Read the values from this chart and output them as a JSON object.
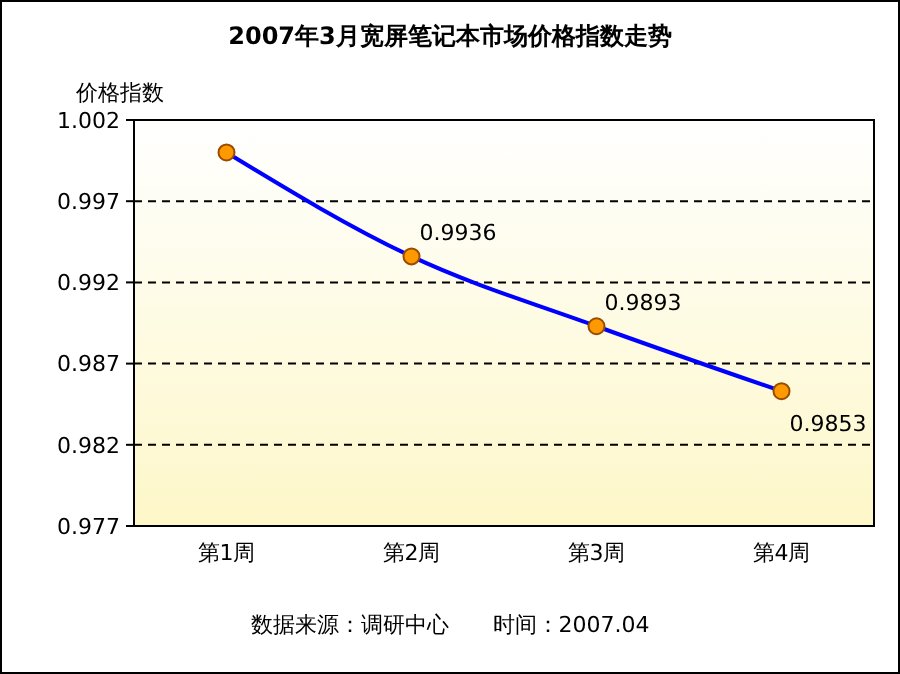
{
  "chart_data": {
    "type": "line",
    "title": "2007年3月宽屏笔记本市场价格指数走势",
    "ylabel": "价格指数",
    "categories": [
      "第1周",
      "第2周",
      "第3周",
      "第4周"
    ],
    "series": [
      {
        "color": "#0000ff",
        "values": [
          1.0,
          0.9936,
          0.9893,
          0.9853
        ],
        "value_labels": [
          null,
          "0.9936",
          "0.9893",
          "0.9853"
        ]
      }
    ],
    "ylim": [
      0.977,
      1.002
    ],
    "yticks": [
      0.977,
      0.982,
      0.987,
      0.992,
      0.997,
      1.002
    ],
    "grid": "y",
    "marker": "circle",
    "line_style": "solid",
    "annotations": [
      "数据来源：调研中心　　时间：2007.04"
    ]
  }
}
